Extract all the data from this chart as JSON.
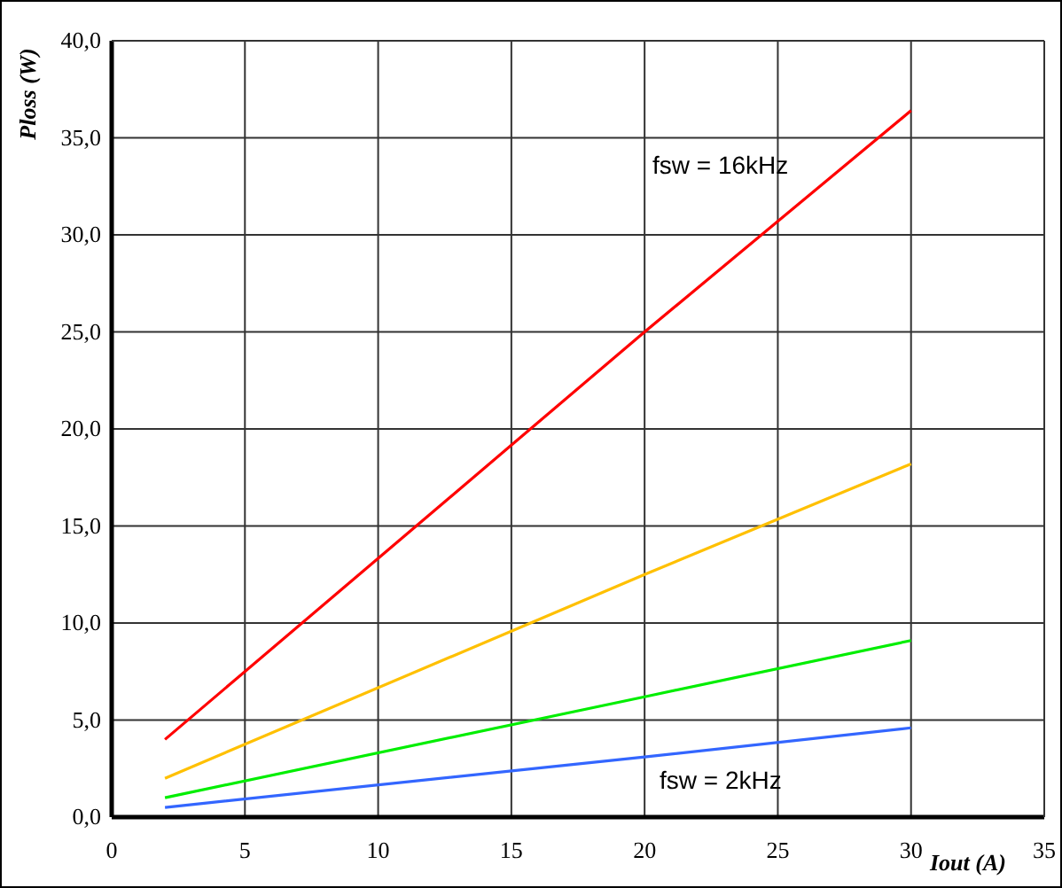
{
  "chart_data": {
    "type": "line",
    "xlabel": "Iout (A)",
    "ylabel": "Ploss (W)",
    "xlim": [
      0,
      35
    ],
    "xticks": [
      0,
      5,
      10,
      15,
      20,
      25,
      30,
      35
    ],
    "ylim": [
      0,
      40
    ],
    "yticks": [
      {
        "value": 0,
        "label": "0,0"
      },
      {
        "value": 5,
        "label": "5,0"
      },
      {
        "value": 10,
        "label": "10,0"
      },
      {
        "value": 15,
        "label": "15,0"
      },
      {
        "value": 20,
        "label": "20,0"
      },
      {
        "value": 25,
        "label": "25,0"
      },
      {
        "value": 30,
        "label": "30,0"
      },
      {
        "value": 35,
        "label": "35,0"
      },
      {
        "value": 40,
        "label": "40,0"
      }
    ],
    "grid": true,
    "marker": "none",
    "line_style": "solid",
    "x": [
      2,
      20,
      30
    ],
    "series": [
      {
        "color": "#ff0000",
        "values": [
          4.0,
          25.0,
          36.4
        ]
      },
      {
        "color": "#ffc000",
        "values": [
          2.0,
          12.5,
          18.2
        ]
      },
      {
        "color": "#00ee00",
        "values": [
          1.0,
          6.2,
          9.1
        ]
      },
      {
        "color": "#3366ff",
        "values": [
          0.5,
          3.1,
          4.6
        ]
      }
    ],
    "annotations": [
      "fsw = 16kHz",
      "fsw = 2kHz"
    ]
  }
}
